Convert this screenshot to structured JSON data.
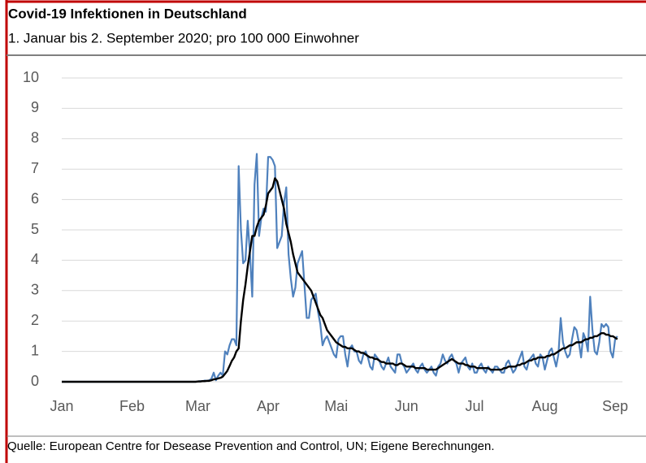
{
  "chart_data": {
    "type": "line",
    "title": "Covid-19 Infektionen in Deutschland",
    "subtitle": "1. Januar bis 2. September 2020; pro 100 000 Einwohner",
    "source": "Quelle: European Centre for Desease Prevention and Control, UN; Eigene Berechnungen.",
    "categories": [
      "Jan",
      null,
      null,
      null,
      null,
      null,
      null,
      null,
      null,
      null,
      null,
      null,
      null,
      null,
      null,
      null,
      null,
      null,
      null,
      null,
      null,
      null,
      null,
      null,
      null,
      null,
      null,
      null,
      null,
      null,
      null,
      "Feb",
      null,
      null,
      null,
      null,
      null,
      null,
      null,
      null,
      null,
      null,
      null,
      null,
      null,
      null,
      null,
      null,
      null,
      null,
      null,
      null,
      null,
      null,
      null,
      null,
      null,
      null,
      null,
      null,
      "Mar",
      null,
      null,
      null,
      null,
      null,
      null,
      null,
      null,
      null,
      null,
      null,
      null,
      null,
      null,
      null,
      null,
      null,
      null,
      null,
      null,
      null,
      null,
      null,
      null,
      null,
      null,
      null,
      null,
      null,
      null,
      "Apr",
      null,
      null,
      null,
      null,
      null,
      null,
      null,
      null,
      null,
      null,
      null,
      null,
      null,
      null,
      null,
      null,
      null,
      null,
      null,
      null,
      null,
      null,
      null,
      null,
      null,
      null,
      null,
      null,
      null,
      "Mai",
      null,
      null,
      null,
      null,
      null,
      null,
      null,
      null,
      null,
      null,
      null,
      null,
      null,
      null,
      null,
      null,
      null,
      null,
      null,
      null,
      null,
      null,
      null,
      null,
      null,
      null,
      null,
      null,
      null,
      null,
      "Jun",
      null,
      null,
      null,
      null,
      null,
      null,
      null,
      null,
      null,
      null,
      null,
      null,
      null,
      null,
      null,
      null,
      null,
      null,
      null,
      null,
      null,
      null,
      null,
      null,
      null,
      null,
      null,
      null,
      null,
      "Jul",
      null,
      null,
      null,
      null,
      null,
      null,
      null,
      null,
      null,
      null,
      null,
      null,
      null,
      null,
      null,
      null,
      null,
      null,
      null,
      null,
      null,
      null,
      null,
      null,
      null,
      null,
      null,
      null,
      null,
      null,
      "Aug",
      null,
      null,
      null,
      null,
      null,
      null,
      null,
      null,
      null,
      null,
      null,
      null,
      null,
      null,
      null,
      null,
      null,
      null,
      null,
      null,
      null,
      null,
      null,
      null,
      null,
      null,
      null,
      null,
      null,
      null,
      "Sep",
      null
    ],
    "series": [
      {
        "color": "#4f81bd",
        "values": [
          0,
          0,
          0,
          0,
          0,
          0,
          0,
          0,
          0,
          0,
          0,
          0,
          0,
          0,
          0,
          0,
          0,
          0,
          0,
          0,
          0,
          0,
          0,
          0,
          0,
          0,
          0,
          0,
          0,
          0,
          0,
          0,
          0,
          0,
          0,
          0,
          0,
          0,
          0,
          0,
          0,
          0,
          0,
          0,
          0,
          0,
          0,
          0,
          0,
          0,
          0,
          0,
          0,
          0,
          0,
          0,
          0,
          0,
          0,
          0,
          0.01,
          0.02,
          0.02,
          0.04,
          0.03,
          0.05,
          0.1,
          0.3,
          0.05,
          0.2,
          0.3,
          0.2,
          1.0,
          0.9,
          1.2,
          1.4,
          1.4,
          1.2,
          7.1,
          5.0,
          3.9,
          4.0,
          5.3,
          4.2,
          2.8,
          6.5,
          7.5,
          4.8,
          5.4,
          5.7,
          5.6,
          7.4,
          7.4,
          7.3,
          7.1,
          4.4,
          4.6,
          4.8,
          5.9,
          6.4,
          4.2,
          3.4,
          2.8,
          3.1,
          3.9,
          4.1,
          4.3,
          3.2,
          2.1,
          2.1,
          2.7,
          2.8,
          2.9,
          2.3,
          1.9,
          1.2,
          1.4,
          1.5,
          1.3,
          1.1,
          0.9,
          0.8,
          1.4,
          1.5,
          1.5,
          0.9,
          0.5,
          1.1,
          1.2,
          1.0,
          1.0,
          0.7,
          0.6,
          0.9,
          1.0,
          0.8,
          0.5,
          0.4,
          0.9,
          0.8,
          0.7,
          0.5,
          0.4,
          0.6,
          0.8,
          0.5,
          0.4,
          0.3,
          0.9,
          0.9,
          0.6,
          0.5,
          0.3,
          0.4,
          0.5,
          0.6,
          0.4,
          0.3,
          0.5,
          0.6,
          0.4,
          0.3,
          0.4,
          0.5,
          0.3,
          0.2,
          0.5,
          0.6,
          0.9,
          0.7,
          0.6,
          0.8,
          0.9,
          0.7,
          0.6,
          0.3,
          0.6,
          0.7,
          0.8,
          0.5,
          0.4,
          0.6,
          0.3,
          0.3,
          0.5,
          0.6,
          0.4,
          0.3,
          0.5,
          0.4,
          0.3,
          0.5,
          0.5,
          0.4,
          0.3,
          0.3,
          0.6,
          0.7,
          0.5,
          0.3,
          0.4,
          0.6,
          0.8,
          1.0,
          0.5,
          0.4,
          0.7,
          0.8,
          0.9,
          0.6,
          0.5,
          0.9,
          0.8,
          0.4,
          0.7,
          1.0,
          1.1,
          0.8,
          0.5,
          0.9,
          2.1,
          1.3,
          1.0,
          0.8,
          0.9,
          1.4,
          1.8,
          1.7,
          1.3,
          0.8,
          1.6,
          1.4,
          1.0,
          2.8,
          1.7,
          1.0,
          0.9,
          1.3,
          1.9,
          1.8,
          1.9,
          1.8,
          1.0,
          0.8,
          1.4,
          1.5
        ]
      },
      {
        "color": "#000000",
        "values": [
          0,
          0,
          0,
          0,
          0,
          0,
          0,
          0,
          0,
          0,
          0,
          0,
          0,
          0,
          0,
          0,
          0,
          0,
          0,
          0,
          0,
          0,
          0,
          0,
          0,
          0,
          0,
          0,
          0,
          0,
          0,
          0,
          0,
          0,
          0,
          0,
          0,
          0,
          0,
          0,
          0,
          0,
          0,
          0,
          0,
          0,
          0,
          0,
          0,
          0,
          0,
          0,
          0,
          0,
          0,
          0,
          0,
          0,
          0,
          0,
          0.01,
          0.01,
          0.02,
          0.02,
          0.03,
          0.03,
          0.05,
          0.08,
          0.09,
          0.11,
          0.13,
          0.17,
          0.26,
          0.36,
          0.52,
          0.69,
          0.8,
          1.0,
          1.1,
          2.0,
          2.7,
          3.2,
          3.8,
          4.3,
          4.8,
          4.8,
          5.1,
          5.3,
          5.4,
          5.5,
          5.8,
          6.2,
          6.3,
          6.4,
          6.7,
          6.6,
          6.3,
          6.0,
          5.7,
          5.2,
          4.9,
          4.6,
          4.2,
          3.9,
          3.6,
          3.5,
          3.4,
          3.3,
          3.2,
          3.1,
          3.0,
          2.8,
          2.6,
          2.4,
          2.2,
          2.1,
          1.9,
          1.7,
          1.6,
          1.5,
          1.4,
          1.3,
          1.25,
          1.2,
          1.15,
          1.15,
          1.1,
          1.1,
          1.1,
          1.05,
          1.0,
          1.0,
          0.95,
          0.95,
          0.9,
          0.85,
          0.8,
          0.8,
          0.75,
          0.75,
          0.7,
          0.65,
          0.65,
          0.6,
          0.6,
          0.6,
          0.6,
          0.55,
          0.55,
          0.6,
          0.6,
          0.55,
          0.5,
          0.5,
          0.5,
          0.5,
          0.45,
          0.45,
          0.45,
          0.45,
          0.45,
          0.4,
          0.4,
          0.4,
          0.4,
          0.4,
          0.45,
          0.5,
          0.55,
          0.6,
          0.65,
          0.7,
          0.75,
          0.7,
          0.65,
          0.6,
          0.6,
          0.6,
          0.55,
          0.55,
          0.5,
          0.5,
          0.5,
          0.45,
          0.45,
          0.45,
          0.45,
          0.45,
          0.45,
          0.4,
          0.4,
          0.4,
          0.4,
          0.4,
          0.4,
          0.45,
          0.45,
          0.5,
          0.5,
          0.5,
          0.5,
          0.55,
          0.55,
          0.6,
          0.6,
          0.65,
          0.7,
          0.7,
          0.75,
          0.75,
          0.8,
          0.8,
          0.8,
          0.8,
          0.85,
          0.85,
          0.9,
          0.9,
          0.95,
          1.0,
          1.05,
          1.1,
          1.1,
          1.15,
          1.2,
          1.2,
          1.25,
          1.3,
          1.3,
          1.3,
          1.35,
          1.4,
          1.4,
          1.45,
          1.45,
          1.5,
          1.5,
          1.55,
          1.6,
          1.6,
          1.55,
          1.55,
          1.5,
          1.5,
          1.45,
          1.4
        ]
      }
    ],
    "ylim": [
      0,
      10
    ],
    "yticks": [
      0,
      1,
      2,
      3,
      4,
      5,
      6,
      7,
      8,
      9,
      10
    ],
    "grid": true
  }
}
